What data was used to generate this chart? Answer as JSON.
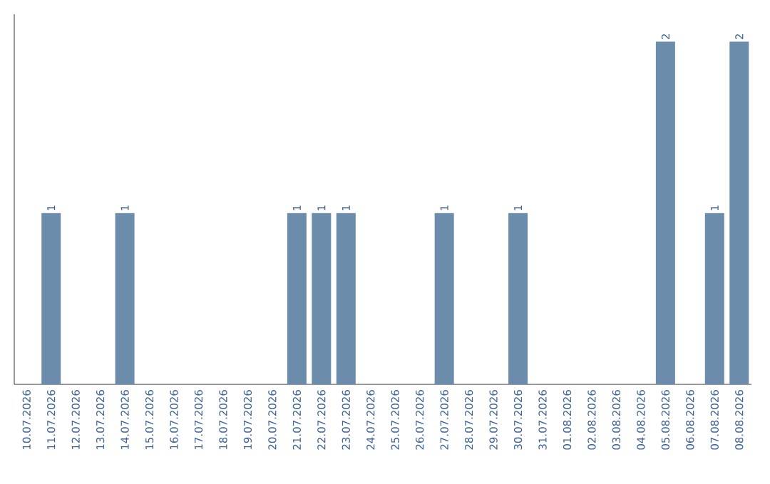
{
  "chart_data": {
    "type": "bar",
    "categories": [
      "10.07.2026",
      "11.07.2026",
      "12.07.2026",
      "13.07.2026",
      "14.07.2026",
      "15.07.2026",
      "16.07.2026",
      "17.07.2026",
      "18.07.2026",
      "19.07.2026",
      "20.07.2026",
      "21.07.2026",
      "22.07.2026",
      "23.07.2026",
      "24.07.2026",
      "25.07.2026",
      "26.07.2026",
      "27.07.2026",
      "28.07.2026",
      "29.07.2026",
      "30.07.2026",
      "31.07.2026",
      "01.08.2026",
      "02.08.2026",
      "03.08.2026",
      "04.08.2026",
      "05.08.2026",
      "06.08.2026",
      "07.08.2026",
      "08.08.2026"
    ],
    "values": [
      0,
      1,
      0,
      0,
      1,
      0,
      0,
      0,
      0,
      0,
      0,
      1,
      1,
      1,
      0,
      0,
      0,
      1,
      0,
      0,
      1,
      0,
      0,
      0,
      0,
      0,
      2,
      0,
      1,
      2
    ],
    "value_labels": [
      null,
      "1",
      null,
      null,
      "1",
      null,
      null,
      null,
      null,
      null,
      null,
      "1",
      "1",
      "1",
      null,
      null,
      null,
      "1",
      null,
      null,
      "1",
      null,
      null,
      null,
      null,
      null,
      "2",
      null,
      "1",
      "2"
    ],
    "color": "#6b8cab"
  }
}
